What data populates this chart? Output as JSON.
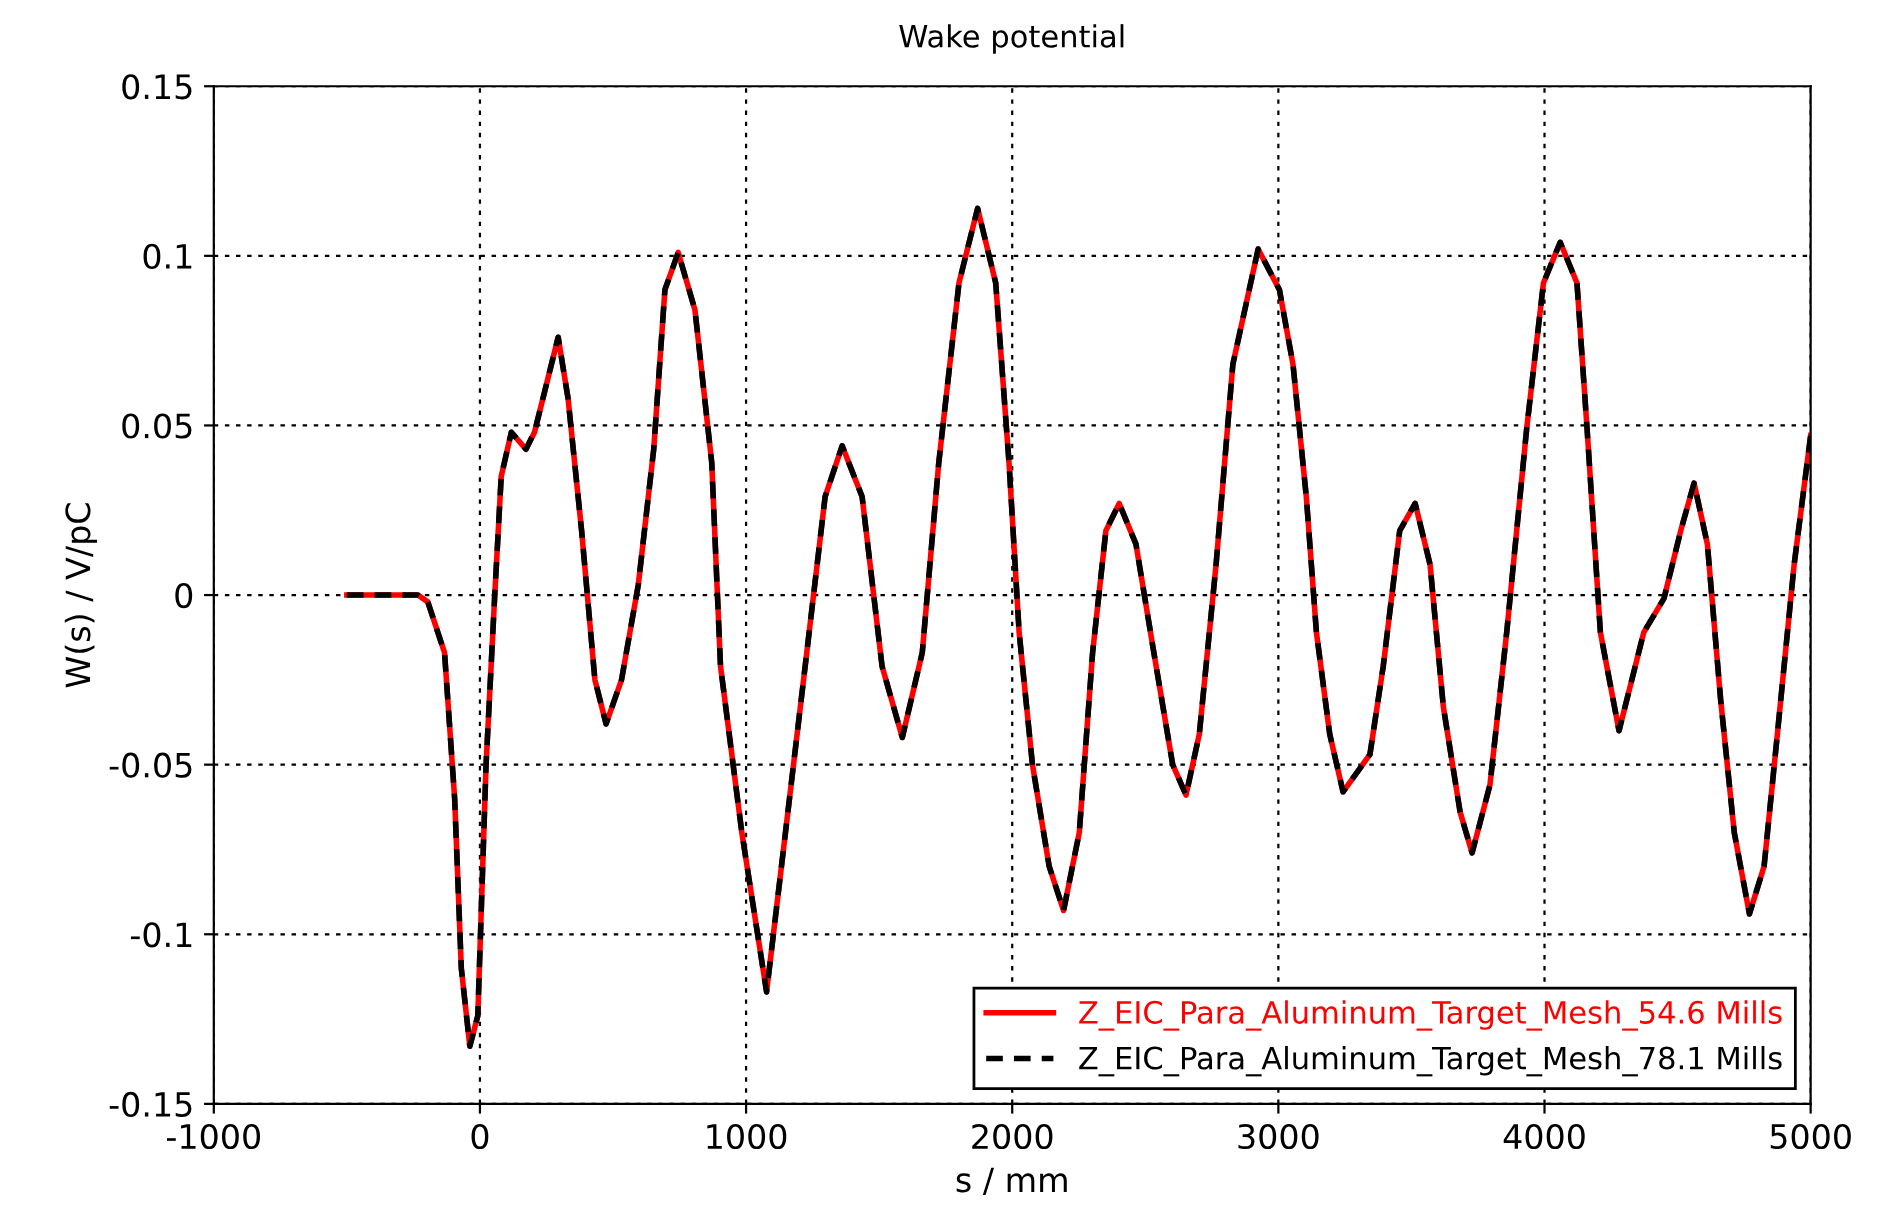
{
  "chart_data": {
    "type": "line",
    "title": "Wake potential",
    "xlabel": "s / mm",
    "ylabel": "W(s) / V/pC",
    "x": [
      -500,
      -233,
      -196,
      -133,
      -95,
      -70,
      -38,
      -8,
      23,
      55,
      80,
      118,
      173,
      205,
      294,
      331,
      382,
      432,
      474,
      532,
      595,
      653,
      695,
      745,
      808,
      871,
      904,
      984,
      1077,
      1222,
      1297,
      1361,
      1436,
      1511,
      1587,
      1662,
      1724,
      1800,
      1870,
      1938,
      1988,
      2026,
      2076,
      2139,
      2193,
      2252,
      2302,
      2352,
      2402,
      2465,
      2528,
      2603,
      2653,
      2703,
      2766,
      2829,
      2924,
      3004,
      3055,
      3105,
      3143,
      3193,
      3243,
      3344,
      3394,
      3456,
      3514,
      3570,
      3620,
      3683,
      3728,
      3795,
      3858,
      3933,
      3996,
      4059,
      4122,
      4160,
      4210,
      4280,
      4373,
      4449,
      4512,
      4562,
      4612,
      4662,
      4713,
      4770,
      4825,
      4875,
      4938,
      5000
    ],
    "series": [
      {
        "name": "Z_EIC_Para_Aluminum_Target_Mesh_54.6 Mills",
        "color": "#ff0000",
        "line_style": "solid",
        "values": [
          0,
          0,
          -0.002,
          -0.017,
          -0.06,
          -0.11,
          -0.133,
          -0.124,
          -0.05,
          -0.001,
          0.035,
          0.048,
          0.043,
          0.048,
          0.076,
          0.058,
          0.019,
          -0.025,
          -0.038,
          -0.025,
          0.003,
          0.043,
          0.09,
          0.101,
          0.084,
          0.039,
          -0.021,
          -0.07,
          -0.117,
          -0.021,
          0.029,
          0.044,
          0.029,
          -0.021,
          -0.042,
          -0.017,
          0.039,
          0.092,
          0.114,
          0.092,
          0.039,
          -0.011,
          -0.05,
          -0.08,
          -0.093,
          -0.07,
          -0.017,
          0.019,
          0.027,
          0.015,
          -0.015,
          -0.05,
          -0.059,
          -0.041,
          0.009,
          0.068,
          0.102,
          0.09,
          0.068,
          0.029,
          -0.011,
          -0.041,
          -0.058,
          -0.047,
          -0.021,
          0.019,
          0.027,
          0.009,
          -0.033,
          -0.064,
          -0.076,
          -0.056,
          -0.011,
          0.049,
          0.092,
          0.104,
          0.092,
          0.049,
          -0.011,
          -0.04,
          -0.011,
          -0.001,
          0.019,
          0.033,
          0.015,
          -0.031,
          -0.07,
          -0.094,
          -0.08,
          -0.041,
          0.009,
          0.047
        ]
      },
      {
        "name": "Z_EIC_Para_Aluminum_Target_Mesh_78.1 Mills",
        "color": "#000000",
        "line_style": "dashed",
        "values": [
          0,
          0,
          -0.002,
          -0.017,
          -0.06,
          -0.11,
          -0.133,
          -0.124,
          -0.05,
          -0.001,
          0.035,
          0.048,
          0.043,
          0.048,
          0.076,
          0.058,
          0.019,
          -0.025,
          -0.038,
          -0.025,
          0.003,
          0.043,
          0.09,
          0.101,
          0.084,
          0.039,
          -0.021,
          -0.07,
          -0.117,
          -0.021,
          0.029,
          0.044,
          0.029,
          -0.021,
          -0.042,
          -0.017,
          0.039,
          0.092,
          0.114,
          0.092,
          0.039,
          -0.011,
          -0.05,
          -0.08,
          -0.093,
          -0.07,
          -0.017,
          0.019,
          0.027,
          0.015,
          -0.015,
          -0.05,
          -0.059,
          -0.041,
          0.009,
          0.068,
          0.102,
          0.09,
          0.068,
          0.029,
          -0.011,
          -0.041,
          -0.058,
          -0.047,
          -0.021,
          0.019,
          0.027,
          0.009,
          -0.033,
          -0.064,
          -0.076,
          -0.056,
          -0.011,
          0.049,
          0.092,
          0.104,
          0.092,
          0.049,
          -0.011,
          -0.04,
          -0.011,
          -0.001,
          0.019,
          0.033,
          0.015,
          -0.031,
          -0.07,
          -0.094,
          -0.08,
          -0.041,
          0.009,
          0.047
        ]
      }
    ],
    "xlim": [
      -1000,
      5000
    ],
    "xticks": [
      -1000,
      0,
      1000,
      2000,
      3000,
      4000,
      5000
    ],
    "ylim": [
      -0.15,
      0.15
    ],
    "yticks": [
      -0.15,
      -0.1,
      -0.05,
      0,
      0.05,
      0.1,
      0.15
    ],
    "grid": true,
    "legend": "bottom right"
  }
}
